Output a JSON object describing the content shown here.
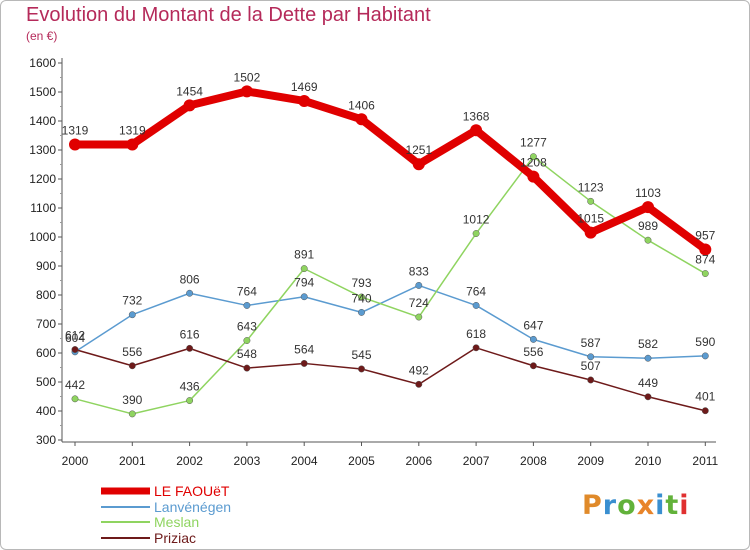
{
  "header": {
    "title": "Evolution du Montant de la Dette par Habitant",
    "subtitle": "(en €)"
  },
  "logo": {
    "text": "Proxiti"
  },
  "colors": {
    "title": "#b52a5a",
    "axis": "#555555",
    "grid": "#e8e8e8"
  },
  "chart_data": {
    "type": "line",
    "title": "Evolution du Montant de la Dette par Habitant",
    "subtitle": "(en €)",
    "xlabel": "",
    "ylabel": "",
    "ylim": [
      300,
      1600
    ],
    "yticks": [
      "300",
      "400",
      "500",
      "600",
      "700",
      "800",
      "900",
      "1000",
      "1100",
      "1200",
      "1300",
      "1400",
      "1500",
      "1600"
    ],
    "categories": [
      "2000",
      "2001",
      "2002",
      "2003",
      "2004",
      "2005",
      "2006",
      "2007",
      "2008",
      "2009",
      "2010",
      "2011"
    ],
    "grid": false,
    "legend_position": "bottom-left",
    "series": [
      {
        "name": "LE FAOUëT",
        "color": "#e00000",
        "width": 8,
        "marker": 6,
        "values": [
          1319,
          1319,
          1454,
          1502,
          1469,
          1406,
          1251,
          1368,
          1208,
          1015,
          1103,
          957
        ]
      },
      {
        "name": "Lanvénégen",
        "color": "#5b9bd0",
        "width": 1.5,
        "marker": 3.2,
        "values": [
          604,
          732,
          806,
          764,
          794,
          740,
          833,
          764,
          647,
          587,
          582,
          590
        ]
      },
      {
        "name": "Meslan",
        "color": "#8fd460",
        "width": 1.5,
        "marker": 3.2,
        "values": [
          442,
          390,
          436,
          643,
          891,
          793,
          724,
          1012,
          1277,
          1123,
          989,
          874
        ]
      },
      {
        "name": "Priziac",
        "color": "#6e1a1a",
        "width": 1.5,
        "marker": 3.2,
        "values": [
          612,
          556,
          616,
          548,
          564,
          545,
          492,
          618,
          556,
          507,
          449,
          401
        ]
      }
    ]
  }
}
